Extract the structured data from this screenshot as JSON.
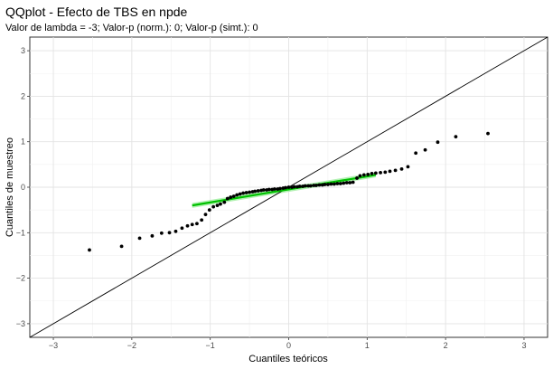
{
  "chart_data": {
    "type": "scatter",
    "title": "QQplot - Efecto de TBS en npde",
    "subtitle": "Valor de lambda = -3; Valor-p (norm.): 0; Valor-p (simt.): 0",
    "xlabel": "Cuantiles teóricos",
    "ylabel": "Cuantiles de muestreo",
    "xlim": [
      -3.3,
      3.3
    ],
    "ylim": [
      -3.3,
      3.3
    ],
    "xticks": [
      -3,
      -2,
      -1,
      0,
      1,
      2,
      3
    ],
    "yticks": [
      -3,
      -2,
      -1,
      0,
      1,
      2,
      3
    ],
    "grid": true,
    "x": [
      -2.54,
      -2.13,
      -1.9,
      -1.74,
      -1.62,
      -1.52,
      -1.44,
      -1.36,
      -1.29,
      -1.23,
      -1.17,
      -1.11,
      -1.06,
      -1.01,
      -0.96,
      -0.91,
      -0.87,
      -0.82,
      -0.78,
      -0.74,
      -0.7,
      -0.66,
      -0.62,
      -0.58,
      -0.54,
      -0.5,
      -0.46,
      -0.43,
      -0.39,
      -0.35,
      -0.32,
      -0.28,
      -0.25,
      -0.21,
      -0.18,
      -0.14,
      -0.11,
      -0.07,
      -0.04,
      0.0,
      0.04,
      0.07,
      0.11,
      0.14,
      0.18,
      0.21,
      0.25,
      0.28,
      0.32,
      0.35,
      0.39,
      0.43,
      0.46,
      0.5,
      0.54,
      0.58,
      0.62,
      0.66,
      0.7,
      0.74,
      0.78,
      0.82,
      0.87,
      0.91,
      0.96,
      1.01,
      1.06,
      1.11,
      1.17,
      1.23,
      1.29,
      1.36,
      1.44,
      1.52,
      1.62,
      1.74,
      1.9,
      2.13,
      2.54
    ],
    "y": [
      -1.38,
      -1.3,
      -1.12,
      -1.07,
      -1.01,
      -1.0,
      -0.97,
      -0.9,
      -0.85,
      -0.82,
      -0.8,
      -0.72,
      -0.6,
      -0.5,
      -0.43,
      -0.4,
      -0.37,
      -0.33,
      -0.25,
      -0.22,
      -0.2,
      -0.17,
      -0.15,
      -0.13,
      -0.12,
      -0.11,
      -0.1,
      -0.09,
      -0.08,
      -0.07,
      -0.06,
      -0.06,
      -0.05,
      -0.05,
      -0.04,
      -0.04,
      -0.03,
      -0.02,
      -0.01,
      0.0,
      0.0,
      0.01,
      0.01,
      0.02,
      0.02,
      0.03,
      0.03,
      0.03,
      0.04,
      0.04,
      0.05,
      0.05,
      0.06,
      0.06,
      0.07,
      0.07,
      0.08,
      0.08,
      0.09,
      0.1,
      0.1,
      0.11,
      0.2,
      0.25,
      0.27,
      0.28,
      0.3,
      0.31,
      0.32,
      0.33,
      0.35,
      0.37,
      0.4,
      0.45,
      0.75,
      0.82,
      0.99,
      1.11,
      1.18
    ],
    "identity_line": {
      "slope": 1,
      "intercept": 0,
      "color": "#000000"
    },
    "fit_line": {
      "x": [
        -1.23,
        1.11
      ],
      "y": [
        -0.4,
        0.27
      ],
      "color": "#00c000",
      "band_color": "#99ee99"
    },
    "point_color": "#000000"
  }
}
